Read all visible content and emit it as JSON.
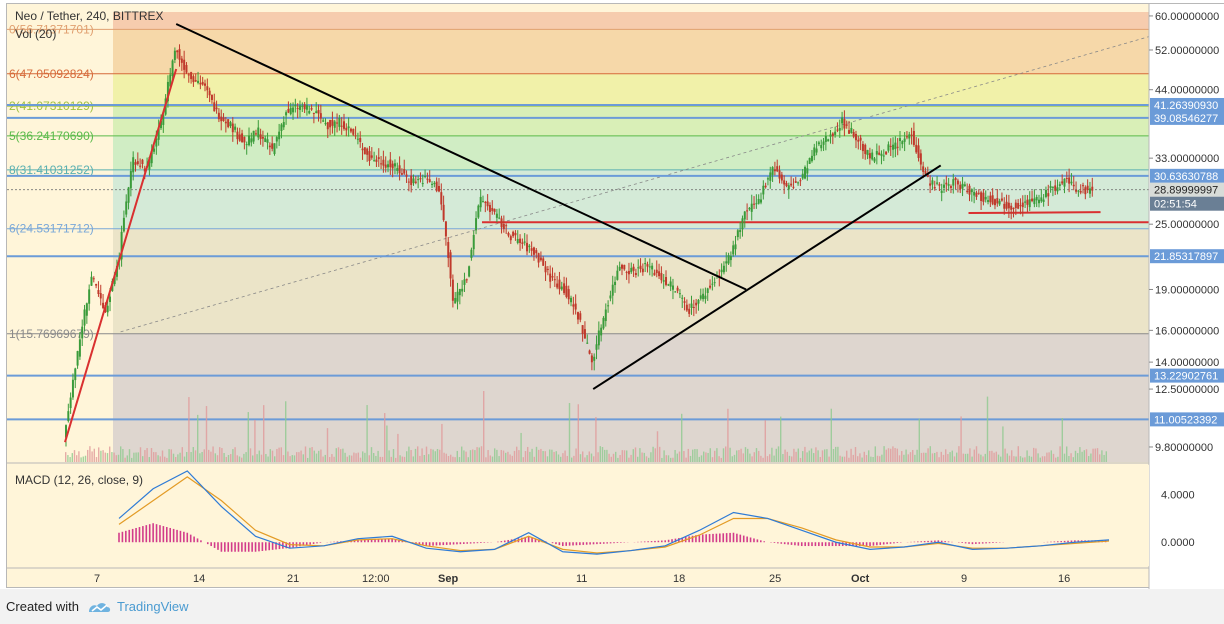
{
  "header": {
    "symbol_title": "Neo / Tether, 240, BITTREX",
    "volume_indicator": "Vol (20)",
    "macd_indicator": "MACD (12, 26, close, 9)"
  },
  "footer": {
    "created_with": "Created with",
    "brand": "TradingView"
  },
  "colors": {
    "candle_up": "#3a9b3a",
    "candle_down": "#c0392b",
    "trendline": "#000000",
    "support_red": "#d93030",
    "hline_blue": "#6b9bd8",
    "macd_line": "#2e7bd6",
    "signal_line": "#e39b25",
    "histogram": "#d23c8b"
  },
  "chart_data": [
    {
      "type": "line",
      "title": "Neo / Tether, 240, BITTREX",
      "subtype": "candlestick",
      "y_scale": "log",
      "ylim": [
        9.2,
        61
      ],
      "price_axis_ticks": [
        "60.00000000",
        "52.00000000",
        "44.00000000",
        "33.00000000",
        "25.00000000",
        "19.00000000",
        "16.00000000",
        "14.00000000",
        "12.50000000",
        "9.80000000"
      ],
      "x_ticks": [
        "7",
        "14",
        "21",
        "12:00",
        "Sep",
        "11",
        "18",
        "25",
        "Oct",
        "9",
        "16"
      ],
      "price_labels": [
        {
          "value": "41.26390930",
          "price": 41.2639093
        },
        {
          "value": "39.08546277",
          "price": 39.08546277
        },
        {
          "value": "30.63630788",
          "price": 30.63630788
        },
        {
          "value": "28.89999997",
          "price": 28.89999997,
          "role": "last-price"
        },
        {
          "value": "02:51:54",
          "role": "countdown"
        },
        {
          "value": "21.85317897",
          "price": 21.85317897
        },
        {
          "value": "13.22902761",
          "price": 13.22902761
        },
        {
          "value": "11.00523392",
          "price": 11.00523392
        }
      ],
      "fib_levels": [
        {
          "label": "0(56.71371701)",
          "price": 56.71371701
        },
        {
          "label": "6(47.05092824)",
          "price": 47.05092824
        },
        {
          "label": "2(41.07310129)",
          "price": 41.07310129
        },
        {
          "label": "5(36.24170690)",
          "price": 36.2417069
        },
        {
          "label": "8(31.41031252)",
          "price": 31.41031252
        },
        {
          "label": "6(24.53171712)",
          "price": 24.53171712
        },
        {
          "label": "1(15.76969679)",
          "price": 15.76969679
        }
      ],
      "fib_fills": [
        "#f5c4a6",
        "#f5d2a0",
        "#eef0a0",
        "#d2edb0",
        "#c8ebc0",
        "#cde8d6",
        "#e8e0c4",
        "#d8d0cc"
      ],
      "horizontal_lines": [
        41.2639093,
        39.08546277,
        30.63630788,
        21.85317897,
        13.22902761,
        11.00523392
      ],
      "support_lines": [
        25.2,
        26.2
      ],
      "price_series": {
        "x_days": [
          0,
          1,
          2,
          3,
          4,
          5,
          6,
          7,
          8,
          9,
          10,
          11,
          12,
          13,
          14,
          15,
          16,
          17,
          18,
          19,
          20,
          21,
          22,
          23,
          24,
          25,
          26,
          27,
          28,
          29,
          30,
          31,
          32,
          33,
          34,
          35,
          36,
          37,
          38,
          39,
          40,
          41,
          42,
          43,
          44,
          45,
          46,
          47,
          48,
          49,
          50,
          51,
          52,
          53,
          54,
          55,
          56,
          57,
          58,
          59,
          60,
          61,
          62,
          63,
          64,
          65,
          66,
          67,
          68,
          69,
          70,
          71,
          72,
          73,
          74
        ],
        "close": [
          10.0,
          14.5,
          20.0,
          17.0,
          22.0,
          33.0,
          31.5,
          38.0,
          52.0,
          47.0,
          45.0,
          40.0,
          38.0,
          35.0,
          37.0,
          34.0,
          40.0,
          41.0,
          40.0,
          38.0,
          38.5,
          36.0,
          33.0,
          32.5,
          31.5,
          30.0,
          30.2,
          29.0,
          18.0,
          20.0,
          28.0,
          26.0,
          24.0,
          23.0,
          22.0,
          20.0,
          19.0,
          17.0,
          14.0,
          17.5,
          21.0,
          20.5,
          21.0,
          20.0,
          19.0,
          17.5,
          18.5,
          20.0,
          22.0,
          26.0,
          27.5,
          32.0,
          29.0,
          30.0,
          34.0,
          36.0,
          38.5,
          36.0,
          33.0,
          34.0,
          35.0,
          36.5,
          30.5,
          29.0,
          29.8,
          29.0,
          28.0,
          27.6,
          27.0,
          27.3,
          27.6,
          28.8,
          30.0,
          28.9,
          28.9
        ]
      },
      "trendlines": [
        {
          "from": [
            0,
            10.0
          ],
          "to": [
            8,
            48.0
          ],
          "color": "#d93030"
        },
        {
          "from": [
            8,
            58.0
          ],
          "to": [
            49,
            19.0
          ],
          "color": "#000000"
        },
        {
          "from": [
            38,
            12.5
          ],
          "to": [
            63,
            32.0
          ],
          "color": "#000000"
        }
      ]
    },
    {
      "type": "line",
      "title": "MACD (12, 26, close, 9)",
      "ylim": [
        -2,
        6.5
      ],
      "ticks": [
        "4.0000",
        "0.0000"
      ],
      "series": [
        {
          "name": "MACD",
          "values": [
            2.0,
            4.5,
            6.0,
            3.0,
            0.5,
            -0.5,
            -0.3,
            0.3,
            0.5,
            -0.5,
            -0.8,
            -0.6,
            0.8,
            -0.8,
            -1.0,
            -0.7,
            -0.3,
            1.0,
            2.5,
            2.0,
            1.0,
            0.0,
            -0.6,
            -0.4,
            0.0,
            -0.6,
            -0.5,
            -0.3,
            0.0,
            0.2
          ]
        },
        {
          "name": "Signal",
          "values": [
            1.5,
            3.5,
            5.5,
            3.5,
            1.0,
            -0.2,
            -0.3,
            0.2,
            0.3,
            -0.3,
            -0.7,
            -0.6,
            0.5,
            -0.6,
            -0.9,
            -0.7,
            -0.4,
            0.6,
            2.0,
            2.0,
            1.2,
            0.2,
            -0.4,
            -0.4,
            -0.1,
            -0.5,
            -0.5,
            -0.3,
            -0.1,
            0.1
          ]
        }
      ]
    }
  ]
}
